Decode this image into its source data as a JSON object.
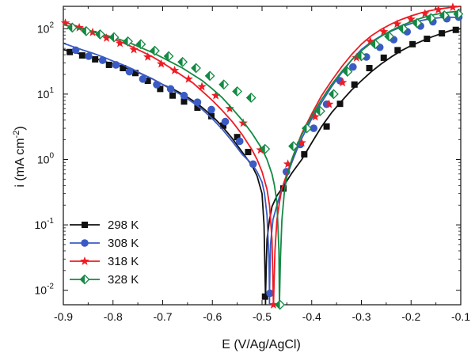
{
  "chart_data": {
    "type": "line",
    "xlabel": "E (V/Ag/AgCl)",
    "ylabel": "i (mA cm-2)",
    "ylabel_parts": {
      "main": "i (mA cm",
      "sup": "-2",
      "close": ")"
    },
    "xlim": [
      -0.9,
      -0.1
    ],
    "ylim": [
      0.006,
      220
    ],
    "yscale": "log",
    "x_ticks": [
      "-0.9",
      "-0.8",
      "-0.7",
      "-0.6",
      "-0.5",
      "-0.4",
      "-0.3",
      "-0.2",
      "-0.1"
    ],
    "y_ticks": [
      {
        "value": 0.01,
        "base": "10",
        "exp": "-2"
      },
      {
        "value": 0.1,
        "base": "10",
        "exp": "-1"
      },
      {
        "value": 1,
        "base": "10",
        "exp": "0"
      },
      {
        "value": 10,
        "base": "10",
        "exp": "1"
      },
      {
        "value": 100,
        "base": "10",
        "exp": "2"
      }
    ],
    "grid": false,
    "legend_position": "bottom-left",
    "series": [
      {
        "name": "298 K",
        "color": "#111111",
        "marker": "square",
        "ecorr": -0.493,
        "x": [
          -0.9,
          -0.88,
          -0.86,
          -0.84,
          -0.82,
          -0.8,
          -0.78,
          -0.76,
          -0.74,
          -0.72,
          -0.7,
          -0.68,
          -0.66,
          -0.64,
          -0.62,
          -0.6,
          -0.58,
          -0.56,
          -0.54,
          -0.52,
          -0.51,
          -0.5,
          -0.496,
          -0.493,
          -0.49,
          -0.485,
          -0.48,
          -0.47,
          -0.46,
          -0.45,
          -0.44,
          -0.42,
          -0.4,
          -0.38,
          -0.36,
          -0.34,
          -0.32,
          -0.3,
          -0.28,
          -0.26,
          -0.24,
          -0.22,
          -0.2,
          -0.18,
          -0.16,
          -0.14,
          -0.12,
          -0.1
        ],
        "y": [
          48,
          44,
          40,
          36,
          32,
          29,
          26,
          23,
          20,
          17,
          14,
          12,
          10,
          8.0,
          6.2,
          4.6,
          3.2,
          2.1,
          1.3,
          0.8,
          0.56,
          0.3,
          0.1,
          0.008,
          0.06,
          0.12,
          0.19,
          0.28,
          0.36,
          0.47,
          0.62,
          1.0,
          1.8,
          3.2,
          5.2,
          7.8,
          11.5,
          16,
          22,
          29,
          37,
          46,
          55,
          64,
          74,
          84,
          94,
          100
        ],
        "marker_x": [
          -0.887,
          -0.862,
          -0.836,
          -0.808,
          -0.78,
          -0.755,
          -0.73,
          -0.705,
          -0.68,
          -0.657,
          -0.63,
          -0.602,
          -0.578,
          -0.55,
          -0.528,
          -0.494,
          -0.457,
          -0.415,
          -0.37,
          -0.343,
          -0.314,
          -0.284,
          -0.255,
          -0.227,
          -0.197,
          -0.168,
          -0.138,
          -0.11
        ],
        "marker_y": [
          44,
          39,
          34,
          28,
          25,
          21,
          16,
          12,
          9.5,
          7.7,
          6.2,
          4.6,
          3.3,
          2.2,
          1.3,
          0.008,
          0.36,
          1.2,
          3.2,
          7.1,
          14,
          25,
          36,
          47,
          58,
          70,
          85,
          96
        ]
      },
      {
        "name": "308 K",
        "color": "#3b5bc4",
        "marker": "circle",
        "ecorr": -0.485,
        "x": [
          -0.9,
          -0.88,
          -0.86,
          -0.84,
          -0.82,
          -0.8,
          -0.78,
          -0.76,
          -0.74,
          -0.72,
          -0.7,
          -0.68,
          -0.66,
          -0.64,
          -0.62,
          -0.6,
          -0.58,
          -0.56,
          -0.54,
          -0.52,
          -0.51,
          -0.5,
          -0.495,
          -0.49,
          -0.486,
          -0.485,
          -0.483,
          -0.478,
          -0.47,
          -0.46,
          -0.45,
          -0.44,
          -0.43,
          -0.42,
          -0.4,
          -0.38,
          -0.36,
          -0.34,
          -0.32,
          -0.3,
          -0.28,
          -0.26,
          -0.24,
          -0.22,
          -0.2,
          -0.18,
          -0.16,
          -0.14,
          -0.12,
          -0.1
        ],
        "y": [
          60,
          53,
          47,
          42,
          37,
          32,
          28,
          24,
          20,
          17,
          14,
          11.5,
          9.5,
          7.5,
          5.8,
          4.2,
          2.9,
          1.9,
          1.2,
          0.85,
          0.65,
          0.45,
          0.3,
          0.14,
          0.03,
          0.009,
          0.05,
          0.12,
          0.2,
          0.36,
          0.55,
          0.9,
          1.4,
          2.1,
          4.2,
          7.5,
          13,
          21,
          33,
          48,
          63,
          78,
          92,
          106,
          120,
          133,
          143,
          148,
          150,
          148
        ],
        "marker_x": [
          -0.875,
          -0.849,
          -0.821,
          -0.794,
          -0.767,
          -0.74,
          -0.712,
          -0.684,
          -0.657,
          -0.63,
          -0.602,
          -0.574,
          -0.545,
          -0.518,
          -0.484,
          -0.451,
          -0.423,
          -0.396,
          -0.37,
          -0.343,
          -0.317,
          -0.29,
          -0.263,
          -0.235,
          -0.208,
          -0.181,
          -0.156,
          -0.128,
          -0.104
        ],
        "marker_y": [
          47,
          38,
          33,
          28,
          22,
          17,
          14,
          12,
          9.5,
          7.5,
          5.8,
          3.8,
          1.9,
          0.85,
          0.009,
          0.65,
          1.7,
          3.0,
          7.0,
          16,
          26,
          37,
          52,
          68,
          90,
          110,
          128,
          142,
          150
        ]
      },
      {
        "name": "318 K",
        "color": "#ee1c24",
        "marker": "star",
        "ecorr": -0.477,
        "x": [
          -0.9,
          -0.88,
          -0.86,
          -0.84,
          -0.82,
          -0.8,
          -0.78,
          -0.76,
          -0.74,
          -0.72,
          -0.7,
          -0.68,
          -0.66,
          -0.64,
          -0.62,
          -0.6,
          -0.58,
          -0.56,
          -0.54,
          -0.52,
          -0.51,
          -0.5,
          -0.49,
          -0.485,
          -0.48,
          -0.477,
          -0.474,
          -0.47,
          -0.465,
          -0.46,
          -0.45,
          -0.44,
          -0.43,
          -0.42,
          -0.4,
          -0.38,
          -0.36,
          -0.34,
          -0.32,
          -0.3,
          -0.28,
          -0.26,
          -0.24,
          -0.22,
          -0.2,
          -0.18,
          -0.16,
          -0.14,
          -0.12,
          -0.1
        ],
        "y": [
          128,
          114,
          102,
          90,
          80,
          70,
          61,
          52,
          44,
          37,
          30,
          24,
          19,
          15,
          11,
          8.0,
          5.6,
          3.8,
          2.4,
          1.4,
          1.0,
          0.65,
          0.35,
          0.2,
          0.06,
          0.006,
          0.04,
          0.12,
          0.22,
          0.36,
          0.6,
          1.0,
          1.6,
          2.5,
          5.0,
          9.5,
          16,
          26,
          40,
          58,
          78,
          98,
          118,
          138,
          157,
          175,
          190,
          202,
          212,
          220
        ],
        "marker_x": [
          -0.896,
          -0.868,
          -0.841,
          -0.813,
          -0.786,
          -0.758,
          -0.73,
          -0.703,
          -0.676,
          -0.648,
          -0.621,
          -0.593,
          -0.565,
          -0.538,
          -0.503,
          -0.477,
          -0.448,
          -0.42,
          -0.393,
          -0.365,
          -0.338,
          -0.31,
          -0.282,
          -0.255,
          -0.228,
          -0.2,
          -0.172,
          -0.145,
          -0.116
        ],
        "marker_y": [
          122,
          104,
          88,
          72,
          60,
          48,
          37,
          29,
          23,
          17,
          13,
          9.5,
          6.0,
          3.6,
          1.4,
          0.006,
          0.85,
          1.8,
          4.5,
          7.0,
          15,
          36,
          64,
          90,
          118,
          140,
          170,
          195,
          213
        ]
      },
      {
        "name": "328 K",
        "color": "#138a43",
        "marker": "diamond",
        "ecorr": -0.465,
        "x": [
          -0.9,
          -0.88,
          -0.86,
          -0.84,
          -0.82,
          -0.8,
          -0.78,
          -0.76,
          -0.74,
          -0.72,
          -0.7,
          -0.68,
          -0.66,
          -0.64,
          -0.62,
          -0.6,
          -0.58,
          -0.56,
          -0.54,
          -0.52,
          -0.5,
          -0.49,
          -0.48,
          -0.475,
          -0.47,
          -0.466,
          -0.465,
          -0.463,
          -0.46,
          -0.455,
          -0.45,
          -0.44,
          -0.43,
          -0.42,
          -0.4,
          -0.38,
          -0.36,
          -0.34,
          -0.32,
          -0.3,
          -0.28,
          -0.26,
          -0.24,
          -0.22,
          -0.2,
          -0.18,
          -0.16,
          -0.14,
          -0.12,
          -0.1
        ],
        "y": [
          115,
          106,
          98,
          90,
          82,
          74,
          66,
          58,
          50,
          43,
          36,
          30,
          25,
          20,
          16,
          12,
          8.8,
          6.0,
          4.0,
          2.5,
          1.45,
          1.0,
          0.6,
          0.4,
          0.22,
          0.04,
          0.006,
          0.03,
          0.12,
          0.32,
          0.55,
          1.0,
          1.6,
          2.4,
          4.6,
          8.3,
          14,
          22,
          33,
          46,
          61,
          77,
          94,
          111,
          128,
          145,
          160,
          172,
          180,
          185
        ],
        "marker_x": [
          -0.882,
          -0.854,
          -0.826,
          -0.798,
          -0.77,
          -0.744,
          -0.716,
          -0.688,
          -0.66,
          -0.633,
          -0.605,
          -0.577,
          -0.55,
          -0.522,
          -0.494,
          -0.464,
          -0.437,
          -0.41,
          -0.383,
          -0.356,
          -0.328,
          -0.3,
          -0.272,
          -0.244,
          -0.216,
          -0.188,
          -0.16,
          -0.133,
          -0.105
        ],
        "marker_y": [
          104,
          92,
          82,
          74,
          64,
          58,
          46,
          38,
          31,
          25,
          19,
          14,
          11,
          8.8,
          1.45,
          0.006,
          1.6,
          3.0,
          5.5,
          10,
          22,
          38,
          58,
          76,
          100,
          122,
          145,
          160,
          168
        ]
      }
    ]
  }
}
